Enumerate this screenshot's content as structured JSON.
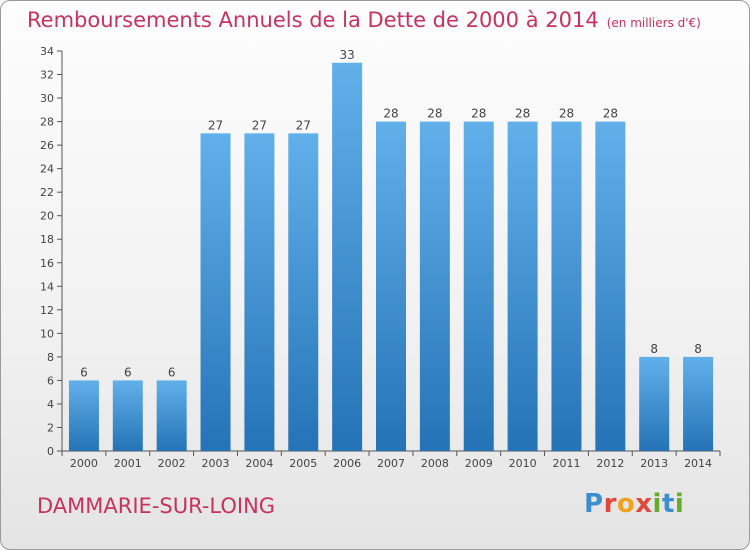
{
  "header": {
    "title": "Remboursements Annuels de la Dette de 2000 à 2014",
    "unit": "(en milliers d'€)"
  },
  "footer": {
    "commune": "DAMMARIE-SUR-LOING",
    "logo": "Proxiti"
  },
  "colors": {
    "bar_top": "#62b0ea",
    "bar_bottom": "#2473b6",
    "title": "#c7325f",
    "text": "#444444"
  },
  "chart_data": {
    "type": "bar",
    "title": "Remboursements Annuels de la Dette de 2000 à 2014",
    "subtitle": "(en milliers d'€)",
    "xlabel": "",
    "ylabel": "",
    "categories": [
      "2000",
      "2001",
      "2002",
      "2003",
      "2004",
      "2005",
      "2006",
      "2007",
      "2008",
      "2009",
      "2010",
      "2011",
      "2012",
      "2013",
      "2014"
    ],
    "values": [
      6,
      6,
      6,
      27,
      27,
      27,
      33,
      28,
      28,
      28,
      28,
      28,
      28,
      8,
      8
    ],
    "ylim": [
      0,
      34
    ],
    "yticks": [
      0,
      2,
      4,
      6,
      8,
      10,
      12,
      14,
      16,
      18,
      20,
      22,
      24,
      26,
      28,
      30,
      32,
      34
    ],
    "grid": false,
    "legend": "none",
    "data_labels": true
  }
}
